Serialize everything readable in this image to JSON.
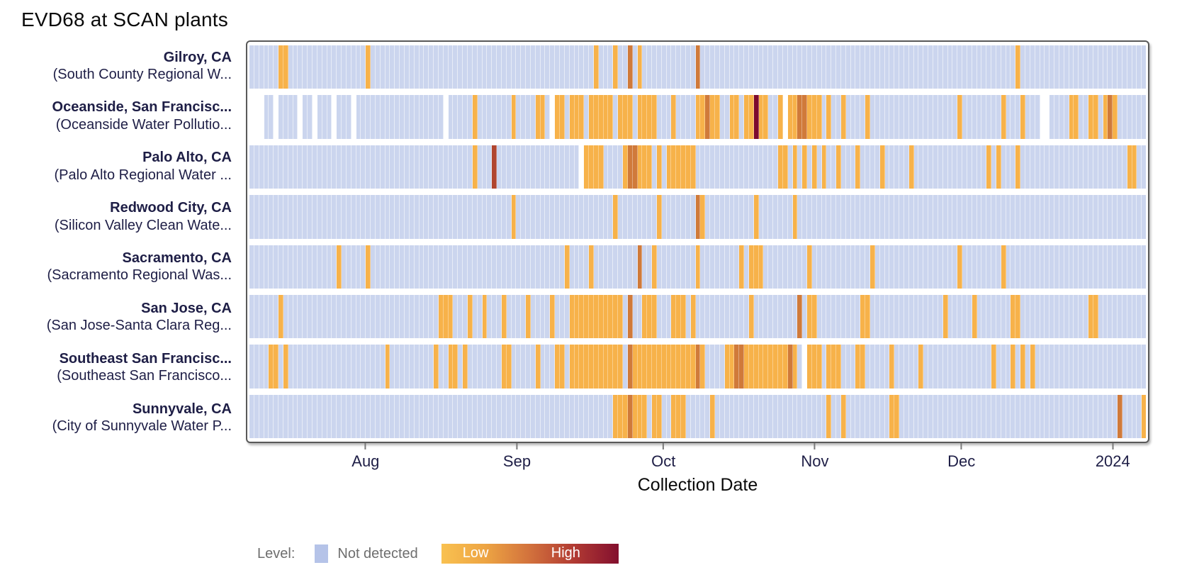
{
  "title": "EVD68 at SCAN plants",
  "xlabel": "Collection Date",
  "legend": {
    "label": "Level:",
    "not_detected_label": "Not detected",
    "low_label": "Low",
    "high_label": "High",
    "swatch_color": "#b5c3e8",
    "gradient": [
      "#f9c150",
      "#eda443",
      "#d2713c",
      "#b13a33",
      "#830f2e"
    ]
  },
  "colors": {
    "not_detected": "#cbd5ee",
    "low": "#f7b24a",
    "medium": "#d07a3a",
    "medium_high": "#b0452f",
    "high": "#7d0a2e",
    "missing": "#ffffff",
    "axis_label_text": "#1e1e46",
    "frame_border": "#595959"
  },
  "chart_data": {
    "type": "heatmap",
    "title": "EVD68 at SCAN plants",
    "xlabel": "Collection Date",
    "date_start": "2023-07-08",
    "date_end": "2024-01-08",
    "total_days": 185,
    "grid": false,
    "legend_position": "bottom",
    "x_ticks": [
      {
        "label": "Aug",
        "day": 24
      },
      {
        "label": "Sep",
        "day": 55
      },
      {
        "label": "Oct",
        "day": 85
      },
      {
        "label": "Nov",
        "day": 116
      },
      {
        "label": "Dec",
        "day": 146
      },
      {
        "label": "2024",
        "day": 177
      }
    ],
    "levels": {
      "nd": "#cbd5ee",
      "l": "#f7b24a",
      "m": "#d07a3a",
      "mh": "#b0452f",
      "h": "#7d0a2e"
    },
    "rows": [
      {
        "city": "Gilroy, CA",
        "plant": "(South County Regional W...",
        "missing": [],
        "detections": [
          [
            6,
            7,
            "l"
          ],
          [
            24,
            24,
            "l"
          ],
          [
            71,
            71,
            "l"
          ],
          [
            75,
            75,
            "l"
          ],
          [
            78,
            78,
            "m"
          ],
          [
            80,
            80,
            "l"
          ],
          [
            92,
            92,
            "m"
          ],
          [
            158,
            158,
            "l"
          ]
        ]
      },
      {
        "city": "Oceanside, San Francisc...",
        "plant": "(Oceanside Water Pollutio...",
        "missing": [
          [
            0,
            2
          ],
          [
            5,
            5
          ],
          [
            10,
            10
          ],
          [
            13,
            13
          ],
          [
            17,
            17
          ],
          [
            21,
            21
          ],
          [
            40,
            40
          ],
          [
            62,
            62
          ],
          [
            110,
            110
          ],
          [
            163,
            164
          ]
        ],
        "detections": [
          [
            46,
            46,
            "l"
          ],
          [
            54,
            54,
            "l"
          ],
          [
            59,
            60,
            "l"
          ],
          [
            63,
            64,
            "l"
          ],
          [
            66,
            68,
            "l"
          ],
          [
            70,
            74,
            "l"
          ],
          [
            76,
            78,
            "l"
          ],
          [
            80,
            83,
            "l"
          ],
          [
            87,
            87,
            "l"
          ],
          [
            92,
            93,
            "l"
          ],
          [
            94,
            94,
            "m"
          ],
          [
            95,
            96,
            "l"
          ],
          [
            99,
            100,
            "l"
          ],
          [
            102,
            103,
            "l"
          ],
          [
            104,
            104,
            "h"
          ],
          [
            105,
            106,
            "l"
          ],
          [
            109,
            109,
            "l"
          ],
          [
            111,
            112,
            "l"
          ],
          [
            113,
            114,
            "m"
          ],
          [
            115,
            117,
            "l"
          ],
          [
            119,
            119,
            "l"
          ],
          [
            122,
            122,
            "l"
          ],
          [
            127,
            127,
            "l"
          ],
          [
            146,
            146,
            "l"
          ],
          [
            155,
            155,
            "l"
          ],
          [
            159,
            159,
            "l"
          ],
          [
            169,
            170,
            "l"
          ],
          [
            173,
            174,
            "l"
          ],
          [
            176,
            176,
            "l"
          ],
          [
            177,
            177,
            "m"
          ],
          [
            178,
            178,
            "l"
          ]
        ]
      },
      {
        "city": "Palo Alto, CA",
        "plant": "(Palo Alto Regional Water ...",
        "missing": [
          [
            68,
            68
          ]
        ],
        "detections": [
          [
            46,
            46,
            "l"
          ],
          [
            50,
            50,
            "mh"
          ],
          [
            69,
            72,
            "l"
          ],
          [
            77,
            77,
            "l"
          ],
          [
            78,
            79,
            "m"
          ],
          [
            80,
            82,
            "l"
          ],
          [
            84,
            84,
            "l"
          ],
          [
            86,
            91,
            "l"
          ],
          [
            109,
            110,
            "l"
          ],
          [
            112,
            112,
            "l"
          ],
          [
            114,
            114,
            "l"
          ],
          [
            116,
            116,
            "l"
          ],
          [
            118,
            118,
            "l"
          ],
          [
            121,
            121,
            "l"
          ],
          [
            125,
            125,
            "l"
          ],
          [
            130,
            130,
            "l"
          ],
          [
            136,
            136,
            "l"
          ],
          [
            152,
            152,
            "l"
          ],
          [
            154,
            154,
            "l"
          ],
          [
            158,
            158,
            "l"
          ],
          [
            181,
            182,
            "l"
          ]
        ]
      },
      {
        "city": "Redwood City, CA",
        "plant": "(Silicon Valley Clean Wate...",
        "missing": [],
        "detections": [
          [
            54,
            54,
            "l"
          ],
          [
            75,
            75,
            "l"
          ],
          [
            84,
            84,
            "l"
          ],
          [
            92,
            92,
            "m"
          ],
          [
            93,
            93,
            "l"
          ],
          [
            104,
            104,
            "l"
          ],
          [
            112,
            112,
            "l"
          ]
        ]
      },
      {
        "city": "Sacramento, CA",
        "plant": "(Sacramento Regional Was...",
        "missing": [],
        "detections": [
          [
            18,
            18,
            "l"
          ],
          [
            24,
            24,
            "l"
          ],
          [
            65,
            65,
            "l"
          ],
          [
            70,
            70,
            "l"
          ],
          [
            80,
            80,
            "m"
          ],
          [
            83,
            83,
            "l"
          ],
          [
            92,
            92,
            "l"
          ],
          [
            101,
            101,
            "l"
          ],
          [
            103,
            105,
            "l"
          ],
          [
            115,
            115,
            "l"
          ],
          [
            128,
            128,
            "l"
          ],
          [
            146,
            146,
            "l"
          ],
          [
            155,
            155,
            "l"
          ]
        ]
      },
      {
        "city": "San Jose, CA",
        "plant": "(San Jose-Santa Clara Reg...",
        "missing": [],
        "detections": [
          [
            6,
            6,
            "l"
          ],
          [
            39,
            41,
            "l"
          ],
          [
            45,
            45,
            "l"
          ],
          [
            48,
            48,
            "l"
          ],
          [
            52,
            52,
            "l"
          ],
          [
            57,
            57,
            "l"
          ],
          [
            62,
            62,
            "l"
          ],
          [
            66,
            71,
            "l"
          ],
          [
            72,
            74,
            "l"
          ],
          [
            75,
            76,
            "l"
          ],
          [
            78,
            78,
            "m"
          ],
          [
            81,
            83,
            "l"
          ],
          [
            87,
            88,
            "l"
          ],
          [
            89,
            89,
            "l"
          ],
          [
            91,
            91,
            "l"
          ],
          [
            103,
            103,
            "l"
          ],
          [
            113,
            113,
            "m"
          ],
          [
            115,
            116,
            "l"
          ],
          [
            126,
            127,
            "l"
          ],
          [
            143,
            143,
            "l"
          ],
          [
            149,
            149,
            "l"
          ],
          [
            157,
            158,
            "l"
          ],
          [
            173,
            174,
            "l"
          ]
        ]
      },
      {
        "city": "Southeast San Francisc...",
        "plant": "(Southeast San Francisco...",
        "missing": [
          [
            114,
            114
          ]
        ],
        "detections": [
          [
            4,
            4,
            "l"
          ],
          [
            5,
            5,
            "l"
          ],
          [
            7,
            7,
            "l"
          ],
          [
            28,
            28,
            "l"
          ],
          [
            38,
            38,
            "l"
          ],
          [
            41,
            42,
            "l"
          ],
          [
            44,
            44,
            "l"
          ],
          [
            52,
            53,
            "l"
          ],
          [
            59,
            59,
            "l"
          ],
          [
            63,
            63,
            "l"
          ],
          [
            64,
            64,
            "l"
          ],
          [
            66,
            71,
            "l"
          ],
          [
            72,
            73,
            "l"
          ],
          [
            74,
            76,
            "l"
          ],
          [
            78,
            78,
            "m"
          ],
          [
            79,
            80,
            "l"
          ],
          [
            81,
            84,
            "l"
          ],
          [
            85,
            89,
            "l"
          ],
          [
            90,
            91,
            "l"
          ],
          [
            92,
            92,
            "m"
          ],
          [
            93,
            93,
            "l"
          ],
          [
            98,
            99,
            "l"
          ],
          [
            100,
            101,
            "m"
          ],
          [
            102,
            103,
            "l"
          ],
          [
            104,
            106,
            "l"
          ],
          [
            107,
            110,
            "l"
          ],
          [
            111,
            111,
            "m"
          ],
          [
            112,
            112,
            "l"
          ],
          [
            115,
            116,
            "l"
          ],
          [
            117,
            117,
            "l"
          ],
          [
            119,
            120,
            "l"
          ],
          [
            121,
            121,
            "l"
          ],
          [
            125,
            125,
            "l"
          ],
          [
            126,
            126,
            "l"
          ],
          [
            132,
            132,
            "l"
          ],
          [
            138,
            138,
            "l"
          ],
          [
            153,
            153,
            "l"
          ],
          [
            157,
            157,
            "l"
          ],
          [
            159,
            159,
            "l"
          ],
          [
            161,
            161,
            "l"
          ]
        ]
      },
      {
        "city": "Sunnyvale, CA",
        "plant": "(City of Sunnyvale Water P...",
        "missing": [],
        "detections": [
          [
            75,
            77,
            "l"
          ],
          [
            78,
            78,
            "m"
          ],
          [
            79,
            81,
            "l"
          ],
          [
            83,
            84,
            "l"
          ],
          [
            87,
            89,
            "l"
          ],
          [
            95,
            95,
            "l"
          ],
          [
            119,
            119,
            "l"
          ],
          [
            122,
            122,
            "l"
          ],
          [
            132,
            133,
            "l"
          ],
          [
            179,
            179,
            "m"
          ],
          [
            184,
            184,
            "l"
          ]
        ]
      }
    ]
  }
}
